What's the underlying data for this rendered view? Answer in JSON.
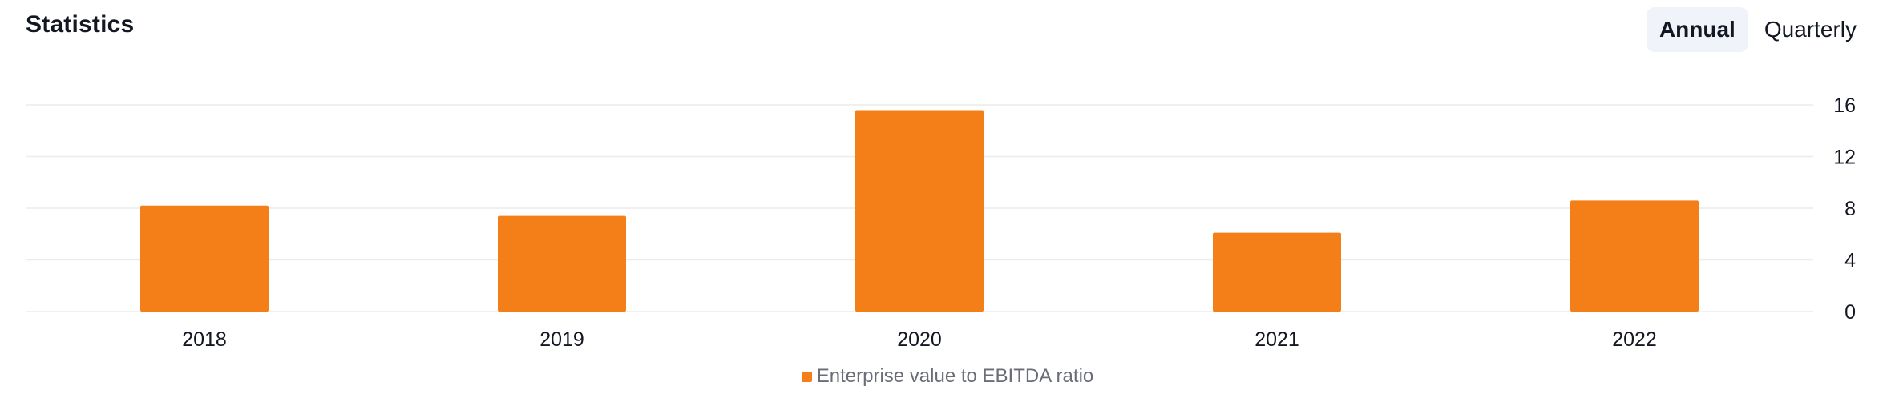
{
  "header": {
    "title": "Statistics",
    "period_options": [
      "Annual",
      "Quarterly"
    ],
    "selected_period": "Annual"
  },
  "colors": {
    "bar": "#f47f19",
    "grid": "#ececec",
    "axis_text": "#131722",
    "legend_text": "#6a6d78",
    "toggle_active_bg": "#f0f3fa"
  },
  "chart_data": {
    "type": "bar",
    "title": "",
    "xlabel": "",
    "ylabel": "",
    "categories": [
      "2018",
      "2019",
      "2020",
      "2021",
      "2022"
    ],
    "series": [
      {
        "name": "Enterprise value to EBITDA ratio",
        "values": [
          8.2,
          7.4,
          15.6,
          6.1,
          8.6
        ]
      }
    ],
    "ylim": [
      0,
      16
    ],
    "yticks": [
      "0",
      "4",
      "8",
      "12",
      "16"
    ],
    "y_axis_side": "right",
    "grid": true,
    "legend_position": "bottom-center"
  }
}
